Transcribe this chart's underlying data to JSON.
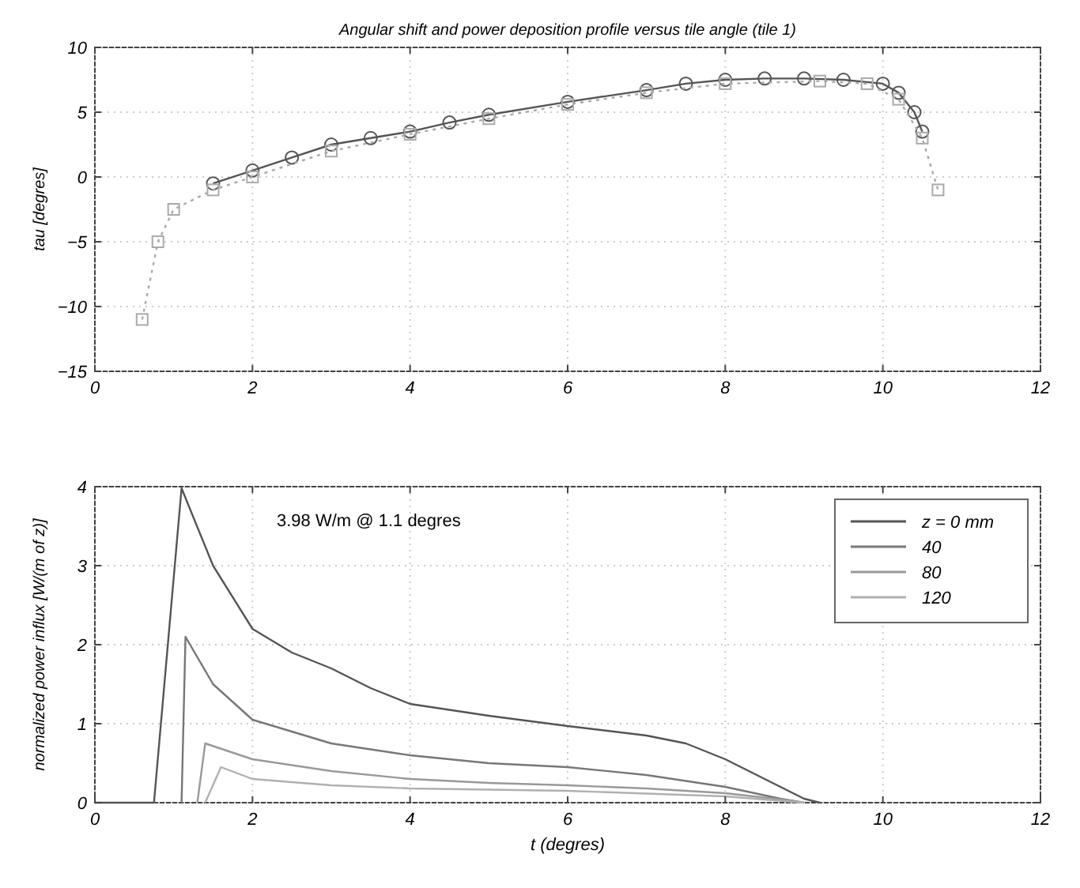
{
  "chart_data": [
    {
      "type": "line",
      "title": "Angular shift and power deposition profile versus tile angle (tile 1)",
      "ylabel": "tau [degres]",
      "xlim": [
        0,
        12
      ],
      "ylim": [
        -15,
        10
      ],
      "xticks": [
        0,
        2,
        4,
        6,
        8,
        10,
        12
      ],
      "yticks": [
        -15,
        -10,
        -5,
        0,
        5,
        10
      ],
      "grid": true,
      "series": [
        {
          "color": "#555555",
          "marker": "circle",
          "line_style": "solid",
          "x": [
            1.5,
            2,
            2.5,
            3,
            3.5,
            4,
            4.5,
            5,
            6,
            7,
            7.5,
            8,
            8.5,
            9,
            9.5,
            10,
            10.2,
            10.4,
            10.5
          ],
          "values": [
            -0.5,
            0.5,
            1.5,
            2.5,
            3,
            3.5,
            4.2,
            4.8,
            5.8,
            6.7,
            7.2,
            7.5,
            7.6,
            7.6,
            7.5,
            7.2,
            6.5,
            5,
            3.5
          ]
        },
        {
          "color": "#aaaaaa",
          "marker": "square",
          "line_style": "dotted",
          "x": [
            0.6,
            0.8,
            1,
            1.5,
            2,
            3,
            4,
            5,
            6,
            7,
            8,
            9.2,
            9.8,
            10.2,
            10.5,
            10.7
          ],
          "values": [
            -11,
            -5,
            -2.5,
            -1,
            0,
            2,
            3.3,
            4.5,
            5.6,
            6.5,
            7.2,
            7.4,
            7.2,
            6,
            3,
            -1
          ]
        }
      ]
    },
    {
      "type": "line",
      "xlabel": "t (degres)",
      "ylabel": "normalized power influx [W/(m of z)]",
      "xlim": [
        0,
        12
      ],
      "ylim": [
        0,
        4
      ],
      "xticks": [
        0,
        2,
        4,
        6,
        8,
        10,
        12
      ],
      "yticks": [
        0,
        1,
        2,
        3,
        4
      ],
      "grid": true,
      "legend": "top right",
      "annotations": [
        "3.98 W/m @ 1.1 degres"
      ],
      "series": [
        {
          "name": "z = 0 mm",
          "color": "#555555",
          "x": [
            0,
            0.75,
            1.1,
            1.5,
            2,
            2.5,
            3,
            3.5,
            4,
            5,
            6,
            7,
            7.5,
            8,
            8.5,
            9,
            9.2
          ],
          "values": [
            0,
            0,
            3.98,
            3.0,
            2.2,
            1.9,
            1.7,
            1.45,
            1.25,
            1.1,
            0.97,
            0.85,
            0.75,
            0.55,
            0.3,
            0.05,
            0
          ]
        },
        {
          "name": "40",
          "color": "#777777",
          "x": [
            1.1,
            1.15,
            1.5,
            2,
            3,
            4,
            5,
            6,
            7,
            8,
            8.7,
            9
          ],
          "values": [
            0,
            2.1,
            1.5,
            1.05,
            0.75,
            0.6,
            0.5,
            0.45,
            0.35,
            0.2,
            0.05,
            0
          ]
        },
        {
          "name": "80",
          "color": "#999999",
          "x": [
            1.3,
            1.4,
            2,
            3,
            4,
            5,
            6,
            7,
            8,
            8.8,
            9
          ],
          "values": [
            0,
            0.75,
            0.55,
            0.4,
            0.3,
            0.25,
            0.22,
            0.18,
            0.12,
            0.03,
            0
          ]
        },
        {
          "name": "120",
          "color": "#b0b0b0",
          "x": [
            1.4,
            1.6,
            2,
            3,
            4,
            6,
            8,
            9
          ],
          "values": [
            0,
            0.45,
            0.3,
            0.22,
            0.18,
            0.15,
            0.08,
            0
          ]
        }
      ]
    }
  ]
}
